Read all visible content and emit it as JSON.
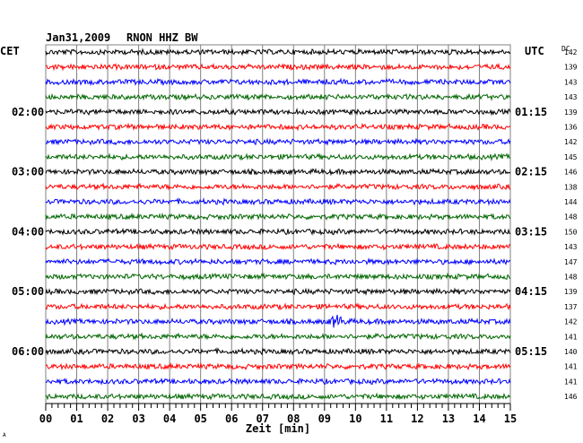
{
  "header": {
    "date": "Jan31,2009",
    "station": "RNON HHZ BW",
    "left_zone": "CET",
    "right_zone": "UTC",
    "dc_label": "DC"
  },
  "chart_data": {
    "type": "line",
    "subtype": "helicorder",
    "xlabel": "Zeit [min]",
    "xlim": [
      0,
      15
    ],
    "x_ticks": [
      "00",
      "01",
      "02",
      "03",
      "04",
      "05",
      "06",
      "07",
      "08",
      "09",
      "10",
      "11",
      "12",
      "13",
      "14",
      "15"
    ],
    "grid": true,
    "trace_colors": [
      "#000000",
      "#ff0000",
      "#0000ff",
      "#006600"
    ],
    "left_time_labels": [
      {
        "trace": 4,
        "label": "02:00"
      },
      {
        "trace": 8,
        "label": "03:00"
      },
      {
        "trace": 12,
        "label": "04:00"
      },
      {
        "trace": 16,
        "label": "05:00"
      },
      {
        "trace": 20,
        "label": "06:00"
      }
    ],
    "right_time_labels": [
      {
        "trace": 4,
        "label": "01:15"
      },
      {
        "trace": 8,
        "label": "02:15"
      },
      {
        "trace": 12,
        "label": "03:15"
      },
      {
        "trace": 16,
        "label": "04:15"
      },
      {
        "trace": 20,
        "label": "05:15"
      }
    ],
    "dc_values": [
      "142",
      "139",
      "143",
      "143",
      "139",
      "136",
      "142",
      "145",
      "146",
      "138",
      "144",
      "148",
      "150",
      "143",
      "147",
      "148",
      "139",
      "137",
      "142",
      "141",
      "140",
      "141",
      "141",
      "146"
    ],
    "events": [
      {
        "trace": 18,
        "minute": 9.4,
        "note": "burst"
      }
    ]
  },
  "misc": {
    "corner_mark": "A"
  }
}
